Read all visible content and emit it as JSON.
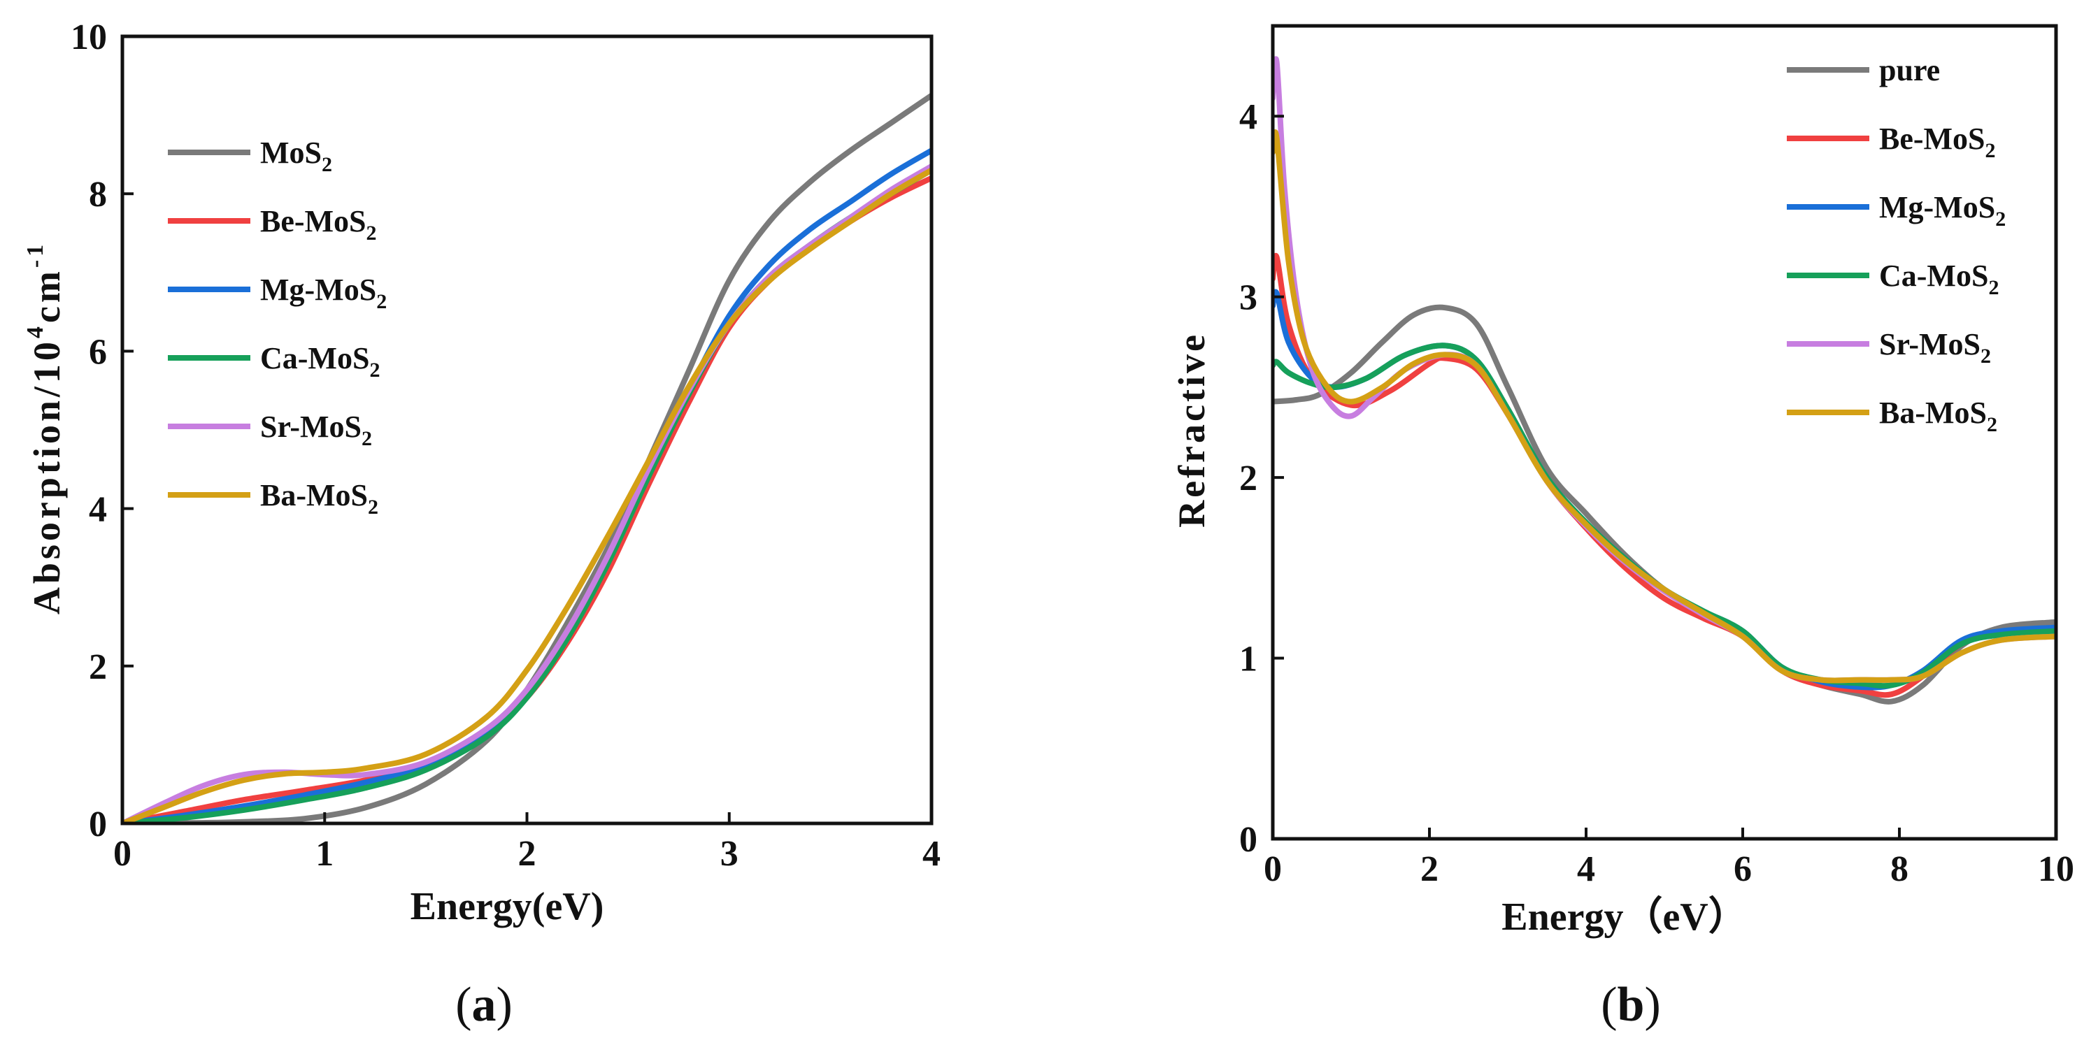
{
  "chart_data": [
    {
      "panel": "a",
      "type": "line",
      "caption": {
        "open": "(",
        "letter": "a",
        "close": ")"
      },
      "xlabel": "Energy(eV)",
      "ylabel": {
        "main": "Absorption/10",
        "sup": "4",
        "unit": "cm",
        "unit_sup": "-1"
      },
      "xlim": [
        0,
        4
      ],
      "ylim": [
        0,
        10
      ],
      "xticks": [
        0,
        1,
        2,
        3,
        4
      ],
      "yticks": [
        0,
        2,
        4,
        6,
        8,
        10
      ],
      "legend_position": "top-left",
      "series": [
        {
          "name": "MoS",
          "sub": "2",
          "color": "#7a7a7a",
          "x": [
            0,
            0.3,
            0.6,
            0.9,
            1.2,
            1.5,
            1.8,
            2.0,
            2.2,
            2.4,
            2.6,
            2.8,
            3.0,
            3.2,
            3.4,
            3.6,
            3.8,
            4.0
          ],
          "y": [
            0,
            0.005,
            0.02,
            0.06,
            0.2,
            0.5,
            1.05,
            1.7,
            2.55,
            3.5,
            4.6,
            5.75,
            6.9,
            7.65,
            8.15,
            8.55,
            8.9,
            9.25
          ]
        },
        {
          "name": "Be-MoS",
          "sub": "2",
          "color": "#f04040",
          "x": [
            0,
            0.3,
            0.6,
            0.9,
            1.2,
            1.5,
            1.8,
            2.0,
            2.2,
            2.4,
            2.6,
            2.8,
            3.0,
            3.2,
            3.4,
            3.6,
            3.8,
            4.0
          ],
          "y": [
            0,
            0.15,
            0.3,
            0.42,
            0.55,
            0.75,
            1.15,
            1.6,
            2.3,
            3.2,
            4.3,
            5.35,
            6.3,
            6.9,
            7.3,
            7.65,
            7.95,
            8.2
          ]
        },
        {
          "name": "Mg-MoS",
          "sub": "2",
          "color": "#1a6fd8",
          "x": [
            0,
            0.3,
            0.6,
            0.9,
            1.2,
            1.5,
            1.8,
            2.0,
            2.2,
            2.4,
            2.6,
            2.8,
            3.0,
            3.2,
            3.4,
            3.6,
            3.8,
            4.0
          ],
          "y": [
            0,
            0.1,
            0.22,
            0.36,
            0.52,
            0.74,
            1.15,
            1.65,
            2.4,
            3.35,
            4.45,
            5.5,
            6.45,
            7.1,
            7.55,
            7.9,
            8.25,
            8.55
          ]
        },
        {
          "name": "Ca-MoS",
          "sub": "2",
          "color": "#16a05a",
          "x": [
            0,
            0.3,
            0.6,
            0.9,
            1.2,
            1.5,
            1.8,
            2.0,
            2.2,
            2.4,
            2.6,
            2.8,
            3.0,
            3.2,
            3.4,
            3.6,
            3.8,
            4.0
          ],
          "y": [
            0,
            0.07,
            0.17,
            0.3,
            0.45,
            0.68,
            1.1,
            1.6,
            2.35,
            3.3,
            4.4,
            5.45,
            6.35,
            6.95,
            7.35,
            7.7,
            8.0,
            8.3
          ]
        },
        {
          "name": "Sr-MoS",
          "sub": "2",
          "color": "#c77ee0",
          "x": [
            0,
            0.2,
            0.4,
            0.6,
            0.8,
            1.0,
            1.2,
            1.5,
            1.8,
            2.0,
            2.2,
            2.4,
            2.6,
            2.8,
            3.0,
            3.2,
            3.4,
            3.6,
            3.8,
            4.0
          ],
          "y": [
            0,
            0.25,
            0.48,
            0.62,
            0.65,
            0.62,
            0.62,
            0.78,
            1.2,
            1.7,
            2.45,
            3.4,
            4.5,
            5.5,
            6.35,
            6.95,
            7.35,
            7.7,
            8.05,
            8.35
          ]
        },
        {
          "name": "Ba-MoS",
          "sub": "2",
          "color": "#d4a015",
          "x": [
            0,
            0.2,
            0.4,
            0.6,
            0.8,
            1.0,
            1.2,
            1.5,
            1.8,
            2.0,
            2.2,
            2.4,
            2.6,
            2.8,
            3.0,
            3.2,
            3.4,
            3.6,
            3.8,
            4.0
          ],
          "y": [
            0,
            0.2,
            0.4,
            0.55,
            0.63,
            0.65,
            0.7,
            0.88,
            1.35,
            1.95,
            2.75,
            3.65,
            4.6,
            5.55,
            6.35,
            6.9,
            7.3,
            7.65,
            8.0,
            8.3
          ]
        }
      ]
    },
    {
      "panel": "b",
      "type": "line",
      "caption": {
        "open": "(",
        "letter": "b",
        "close": ")"
      },
      "xlabel": "Energy（eV）",
      "ylabel": "Refractive",
      "xlim": [
        0,
        10
      ],
      "ylim": [
        0,
        4.5
      ],
      "xticks": [
        0,
        2,
        4,
        6,
        8,
        10
      ],
      "yticks": [
        0,
        1,
        2,
        3,
        4
      ],
      "legend_position": "top-right",
      "series": [
        {
          "name": "pure",
          "sub": "",
          "color": "#7a7a7a",
          "x": [
            0,
            0.3,
            0.6,
            1.0,
            1.4,
            1.8,
            2.2,
            2.6,
            3.0,
            3.5,
            4.0,
            4.5,
            5.0,
            5.5,
            6.0,
            6.5,
            7.0,
            7.5,
            7.9,
            8.3,
            8.8,
            9.3,
            10.0
          ],
          "y": [
            2.42,
            2.43,
            2.46,
            2.58,
            2.75,
            2.9,
            2.94,
            2.85,
            2.5,
            2.05,
            1.8,
            1.57,
            1.38,
            1.25,
            1.12,
            0.93,
            0.85,
            0.8,
            0.76,
            0.85,
            1.07,
            1.17,
            1.2
          ]
        },
        {
          "name": "Be-MoS",
          "sub": "2",
          "color": "#f04040",
          "x": [
            0,
            0.05,
            0.2,
            0.5,
            1.0,
            1.5,
            2.0,
            2.2,
            2.6,
            3.0,
            3.5,
            4.0,
            4.5,
            5.0,
            5.5,
            6.0,
            6.5,
            7.0,
            7.5,
            7.9,
            8.3,
            8.8,
            9.3,
            10.0
          ],
          "y": [
            3.1,
            3.22,
            2.85,
            2.55,
            2.4,
            2.48,
            2.63,
            2.66,
            2.6,
            2.35,
            1.98,
            1.72,
            1.5,
            1.33,
            1.22,
            1.12,
            0.93,
            0.85,
            0.82,
            0.8,
            0.9,
            1.08,
            1.13,
            1.15
          ]
        },
        {
          "name": "Mg-MoS",
          "sub": "2",
          "color": "#1a6fd8",
          "x": [
            0,
            0.05,
            0.2,
            0.5,
            0.8,
            1.2,
            1.7,
            2.2,
            2.6,
            3.0,
            3.5,
            4.0,
            4.5,
            5.0,
            5.5,
            6.0,
            6.5,
            7.0,
            7.5,
            7.9,
            8.3,
            8.8,
            9.3,
            10.0
          ],
          "y": [
            2.95,
            3.02,
            2.75,
            2.55,
            2.5,
            2.55,
            2.68,
            2.73,
            2.65,
            2.38,
            2.0,
            1.75,
            1.55,
            1.38,
            1.26,
            1.15,
            0.95,
            0.87,
            0.84,
            0.85,
            0.93,
            1.1,
            1.15,
            1.17
          ]
        },
        {
          "name": "Ca-MoS",
          "sub": "2",
          "color": "#16a05a",
          "x": [
            0,
            0.05,
            0.2,
            0.5,
            0.8,
            1.2,
            1.7,
            2.2,
            2.6,
            3.0,
            3.5,
            4.0,
            4.5,
            5.0,
            5.5,
            6.0,
            6.5,
            7.0,
            7.5,
            7.9,
            8.3,
            8.8,
            9.3,
            10.0
          ],
          "y": [
            2.62,
            2.64,
            2.58,
            2.52,
            2.5,
            2.55,
            2.68,
            2.73,
            2.65,
            2.38,
            2.0,
            1.75,
            1.55,
            1.38,
            1.26,
            1.15,
            0.95,
            0.88,
            0.86,
            0.85,
            0.92,
            1.08,
            1.13,
            1.15
          ]
        },
        {
          "name": "Sr-MoS",
          "sub": "2",
          "color": "#c77ee0",
          "x": [
            0,
            0.05,
            0.15,
            0.3,
            0.5,
            0.75,
            1.0,
            1.3,
            1.7,
            2.2,
            2.6,
            3.0,
            3.5,
            4.0,
            4.5,
            5.0,
            5.5,
            6.0,
            6.5,
            7.0,
            7.5,
            7.9,
            8.3,
            8.8,
            9.3,
            10.0
          ],
          "y": [
            4.1,
            4.3,
            3.6,
            3.0,
            2.6,
            2.4,
            2.34,
            2.45,
            2.6,
            2.68,
            2.62,
            2.35,
            1.98,
            1.73,
            1.53,
            1.37,
            1.24,
            1.12,
            0.93,
            0.88,
            0.88,
            0.88,
            0.9,
            1.03,
            1.1,
            1.12
          ]
        },
        {
          "name": "Ba-MoS",
          "sub": "2",
          "color": "#d4a015",
          "x": [
            0,
            0.05,
            0.2,
            0.4,
            0.7,
            1.0,
            1.4,
            1.8,
            2.2,
            2.6,
            3.0,
            3.5,
            4.0,
            4.5,
            5.0,
            5.5,
            6.0,
            6.5,
            7.0,
            7.5,
            7.9,
            8.3,
            8.8,
            9.3,
            10.0
          ],
          "y": [
            3.8,
            3.88,
            3.2,
            2.75,
            2.5,
            2.42,
            2.5,
            2.63,
            2.68,
            2.62,
            2.35,
            1.98,
            1.74,
            1.54,
            1.38,
            1.25,
            1.12,
            0.93,
            0.88,
            0.88,
            0.88,
            0.9,
            1.03,
            1.1,
            1.12
          ]
        }
      ]
    }
  ]
}
